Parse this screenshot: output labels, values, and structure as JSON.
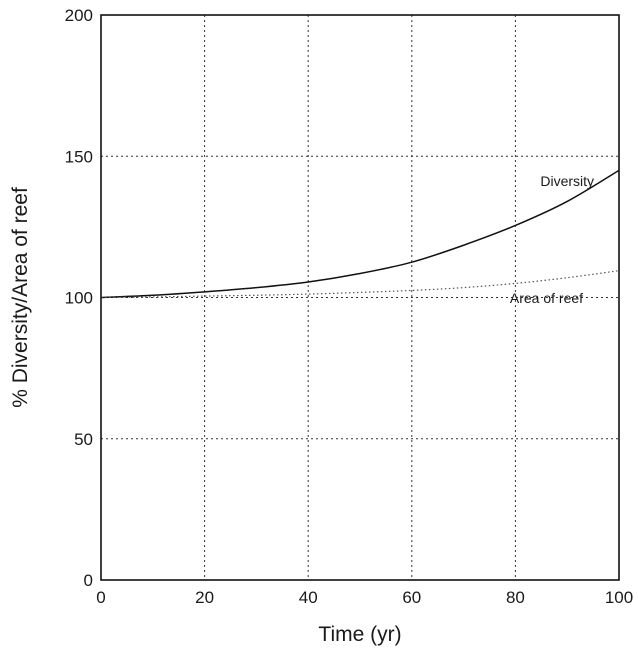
{
  "chart_data": {
    "type": "line",
    "xlabel": "Time (yr)",
    "ylabel": "% Diversity/Area of reef",
    "xlim": [
      0,
      100
    ],
    "ylim": [
      0,
      200
    ],
    "x_ticks": [
      0,
      20,
      40,
      60,
      80,
      100
    ],
    "y_ticks": [
      0,
      50,
      100,
      150,
      200
    ],
    "grid": true,
    "series": [
      {
        "name": "Diversity",
        "style": "solid",
        "color": "#111111",
        "x": [
          0,
          10,
          20,
          30,
          40,
          50,
          60,
          70,
          80,
          90,
          100
        ],
        "y": [
          100,
          100.8,
          102,
          103.5,
          105.5,
          108.5,
          112.5,
          118.5,
          125.5,
          134,
          145
        ]
      },
      {
        "name": "Area of reef",
        "style": "dotted",
        "color": "#555555",
        "x": [
          0,
          10,
          20,
          30,
          40,
          50,
          60,
          70,
          80,
          90,
          100
        ],
        "y": [
          100,
          100.2,
          100.5,
          100.8,
          101.2,
          101.8,
          102.5,
          103.5,
          105,
          107,
          109.5
        ]
      }
    ],
    "annotations": [
      {
        "text": "Diversity",
        "x": 90,
        "y": 139.5
      },
      {
        "text": "Area of reef",
        "x": 86,
        "y": 98
      }
    ]
  }
}
